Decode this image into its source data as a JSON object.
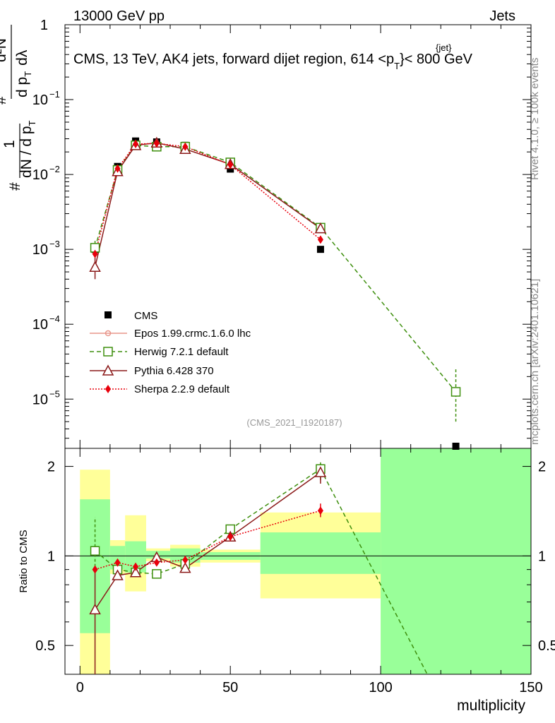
{
  "header": {
    "left": "13000 GeV pp",
    "right": "Jets",
    "title": "CMS, 13 TeV, AK4 jets, forward dijet region, 614 <p",
    "title_sup": "{jet}",
    "title_sub": "T",
    "title_end": "}< 800 GeV"
  },
  "side": {
    "rivet": "Rivet 4.1.0, ≥ 100k events",
    "mcplots": "mcplots.cern.ch [arXiv:2401.10621]"
  },
  "yaxis_main": {
    "lead": "#",
    "one": "1",
    "den1": "dN / d p",
    "den1_sub": "T",
    "hash2": "#",
    "num2": "d²N",
    "den2": "d p",
    "den2_sub": "T",
    "den2_tail": "dλ",
    "ticks": [
      "1",
      "10",
      "10",
      "10",
      "10",
      "10"
    ],
    "tick_exps": [
      "",
      "−1",
      "−2",
      "−3",
      "−4",
      "−5"
    ]
  },
  "ratio_axis": {
    "label": "Ratio to CMS",
    "ticks": [
      "2",
      "1",
      "0.5"
    ]
  },
  "xaxis": {
    "label": "multiplicity",
    "ticks": [
      "0",
      "50",
      "100",
      "150"
    ]
  },
  "analysis_id": "(CMS_2021_I1920187)",
  "legend": [
    {
      "label": "CMS",
      "color": "#000000",
      "marker": "square"
    },
    {
      "label": "Epos 1.99.crmc.1.6.0 lhc",
      "color": "#e8958a",
      "marker": "cross"
    },
    {
      "label": "Herwig 7.2.1 default",
      "color": "#3e8f0e",
      "marker": "open-square"
    },
    {
      "label": "Pythia 6.428 370",
      "color": "#8b1a1a",
      "marker": "open-triangle"
    },
    {
      "label": "Sherpa 2.2.9 default",
      "color": "#e8000b",
      "marker": "diamond"
    }
  ],
  "chart_data": {
    "type": "line",
    "title": "CMS, 13 TeV, AK4 jets, forward dijet region, 614 <p_T^{jet}< 800 GeV",
    "xlabel": "multiplicity",
    "ylabel": "1/N dN/dp_T d²N/dp_T dλ",
    "xlim": [
      -5,
      150
    ],
    "ylim_log": [
      2.2e-06,
      1.0
    ],
    "ratio_ylim": [
      0.4,
      2.3
    ],
    "x": [
      5,
      12.5,
      18.5,
      25.5,
      35,
      50,
      80,
      125
    ],
    "band_edges": [
      0,
      10,
      15,
      22,
      30,
      40,
      60,
      100,
      150
    ],
    "series": [
      {
        "name": "CMS",
        "color": "#000000",
        "values": [
          0.001,
          0.0128,
          0.028,
          0.0272,
          0.0245,
          0.0118,
          0.001,
          2.2e-06
        ]
      },
      {
        "name": "Herwig 7.2.1 default",
        "color": "#3e8f0e",
        "values": [
          0.00105,
          0.0115,
          0.0245,
          0.0235,
          0.0235,
          0.0145,
          0.00195,
          1.25e-05
        ],
        "ratio": [
          1.04,
          0.9,
          0.88,
          0.87,
          0.94,
          1.23,
          1.96,
          null
        ]
      },
      {
        "name": "Pythia 6.428 370",
        "color": "#8b1a1a",
        "values": [
          0.00058,
          0.011,
          0.0245,
          0.0265,
          0.0218,
          0.0137,
          0.0019,
          null
        ],
        "ratio": [
          0.66,
          0.86,
          0.88,
          0.99,
          0.91,
          1.16,
          1.91,
          null
        ]
      },
      {
        "name": "Sherpa 2.2.9 default",
        "color": "#e8000b",
        "values": [
          0.00087,
          0.012,
          0.0255,
          0.026,
          0.0235,
          0.0135,
          0.00135,
          null
        ],
        "ratio": [
          0.9,
          0.95,
          0.92,
          0.95,
          0.97,
          1.16,
          1.42,
          null
        ]
      }
    ],
    "herwig_ratio_tail": {
      "x": [
        80,
        115.5
      ],
      "y": [
        1.96,
        0.4
      ]
    },
    "cms_uncertainty_bands": {
      "inner_green": [
        [
          0.55,
          1.55
        ],
        [
          0.9,
          1.08
        ],
        [
          0.88,
          1.12
        ],
        [
          0.98,
          1.04
        ],
        [
          0.95,
          1.06
        ],
        [
          0.97,
          1.03
        ],
        [
          0.87,
          1.2
        ],
        [
          0.4,
          2.3
        ]
      ],
      "outer_yellow": [
        [
          0.4,
          1.95
        ],
        [
          0.87,
          1.13
        ],
        [
          0.76,
          1.37
        ],
        [
          0.96,
          1.06
        ],
        [
          0.92,
          1.09
        ],
        [
          0.95,
          1.05
        ],
        [
          0.72,
          1.4
        ],
        [
          0.4,
          2.3
        ]
      ]
    }
  }
}
